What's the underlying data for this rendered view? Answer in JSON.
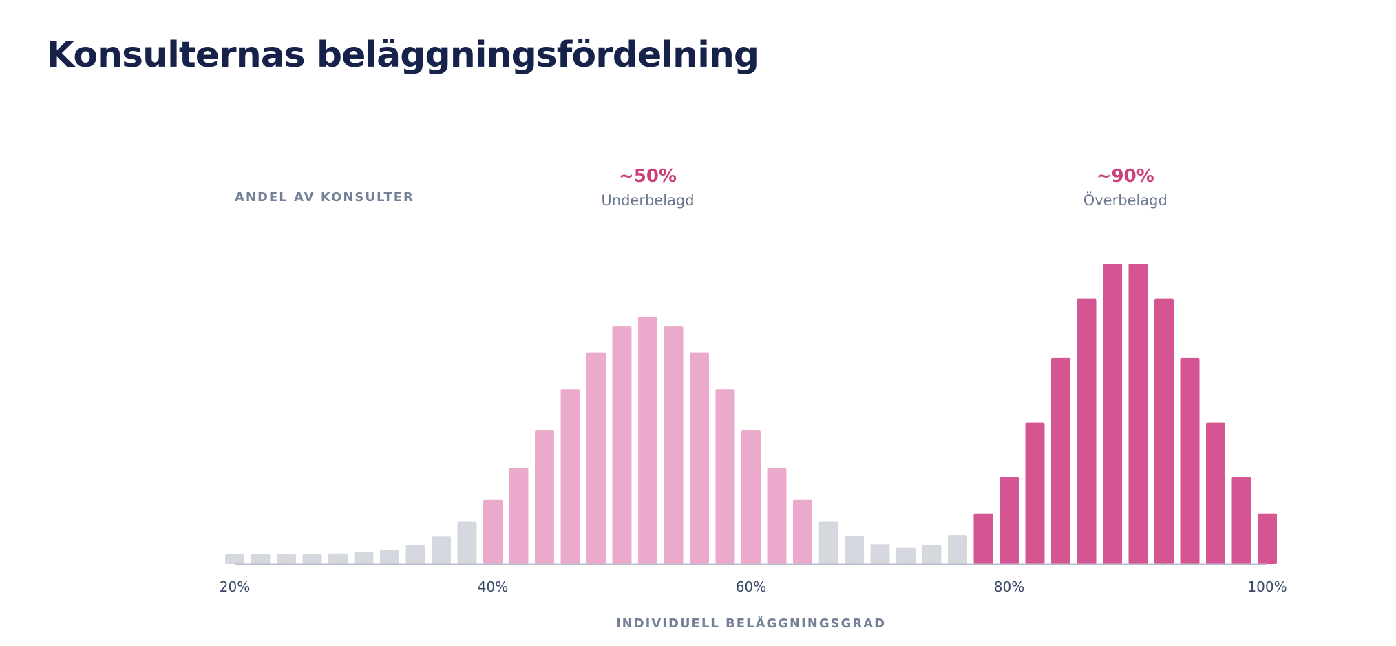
{
  "title": "Konsulternas beläggningsfördelning",
  "chart_data": {
    "type": "bar",
    "title": "Konsulternas beläggningsfördelning",
    "ylabel": "ANDEL AV KONSULTER",
    "xlabel": "INDIVIDUELL BELÄGGNINGSGRAD",
    "xlim": [
      20,
      100
    ],
    "ylim": [
      0,
      100
    ],
    "x_ticks": [
      "20%",
      "40%",
      "60%",
      "80%",
      "100%"
    ],
    "grid": false,
    "colors": {
      "gray": "#d5d8de",
      "light_pink": "#ebaacb",
      "dark_pink": "#d55592",
      "axis": "#b9bdcd"
    },
    "series": [
      {
        "color": "gray",
        "x": [
          20,
          22,
          24,
          26,
          28,
          30,
          32,
          34,
          36,
          38,
          66,
          68,
          70,
          72,
          74,
          76
        ],
        "values": [
          3.2,
          3.2,
          3.2,
          3.2,
          3.5,
          4.1,
          4.7,
          6.3,
          9.1,
          14.1,
          14.1,
          9.3,
          6.6,
          5.6,
          6.3,
          9.6
        ]
      },
      {
        "color": "light_pink",
        "x": [
          40,
          42,
          44,
          46,
          48,
          50,
          52,
          54,
          56,
          58,
          60,
          62,
          64
        ],
        "values": [
          21.4,
          31.9,
          44.5,
          58.2,
          70.5,
          79.1,
          82.3,
          79.1,
          70.5,
          58.2,
          44.5,
          31.9,
          21.4
        ]
      },
      {
        "color": "dark_pink",
        "x": [
          78,
          80,
          82,
          84,
          86,
          88,
          90,
          92,
          94,
          96,
          98,
          100
        ],
        "values": [
          16.8,
          29.0,
          47.1,
          68.6,
          88.4,
          100,
          100,
          88.4,
          68.6,
          47.1,
          29.0,
          16.8
        ]
      }
    ],
    "annotations": [
      {
        "x": 52,
        "value": "~50%",
        "label": "Underbelagd"
      },
      {
        "x": 89,
        "value": "~90%",
        "label": "Överbelagd"
      }
    ]
  }
}
